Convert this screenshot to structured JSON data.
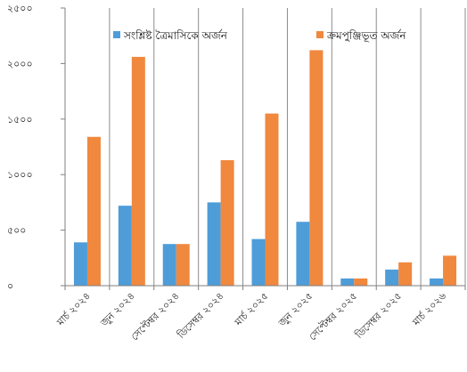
{
  "chart_data": {
    "type": "bar",
    "categories": [
      "মার্চ ২০২৪",
      "জুন ২০২৪",
      "সেপ্টেম্বর ২০২৪",
      "ডিসেম্বর ২০২৪",
      "মার্চ ২০২৫",
      "জুন ২০২৫",
      "সেপ্টেম্বর ২০২৫",
      "ডিসেম্বর ২০২৫",
      "মার্চ ২০২৬"
    ],
    "series": [
      {
        "name": "সংশ্লিষ্ট ত্রৈমাসিকে অর্জন",
        "color": "#4e9dd9",
        "values": [
          390,
          720,
          375,
          750,
          420,
          575,
          65,
          145,
          65
        ]
      },
      {
        "name": "ক্রমপুঞ্জিভূত অর্জন",
        "color": "#f0883e",
        "values": [
          1340,
          2060,
          375,
          1130,
          1550,
          2120,
          65,
          210,
          270
        ]
      }
    ],
    "yticks": [
      "০",
      "৫০০",
      "১০০০",
      "১৫০০",
      "২০০০",
      "২৫০০"
    ],
    "ylim": [
      0,
      2500
    ],
    "grid": true,
    "grid_axis": "x",
    "legend_position": "top"
  }
}
